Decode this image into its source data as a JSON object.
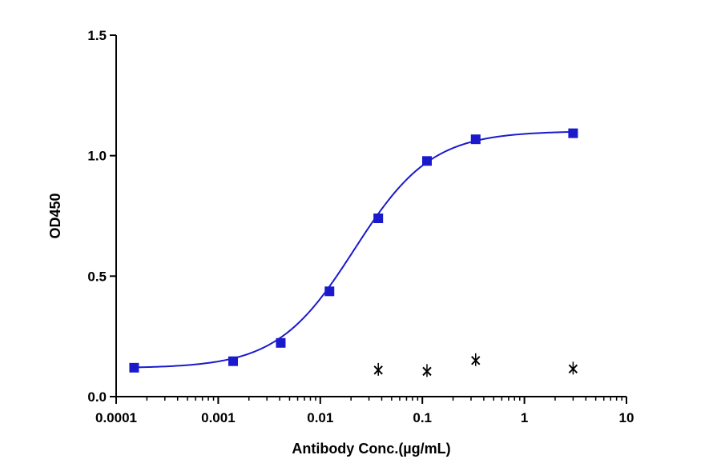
{
  "chart_data": {
    "type": "scatter",
    "title": "",
    "xlabel": "Antibody Conc.(µg/mL)",
    "ylabel": "OD450",
    "xscale": "log",
    "xlim": [
      0.0001,
      10
    ],
    "ylim": [
      0,
      1.5
    ],
    "xticks": [
      0.0001,
      0.001,
      0.01,
      0.1,
      1,
      10
    ],
    "xtick_labels": [
      "0.0001",
      "0.001",
      "0.01",
      "0.1",
      "1",
      "10"
    ],
    "yticks": [
      0,
      0.5,
      1.0,
      1.5
    ],
    "ytick_labels": [
      "0.0",
      "0.5",
      "1.0",
      "1.5"
    ],
    "grid": false,
    "series": [
      {
        "marker": "square",
        "color": "#1a1acc",
        "fit_curve": "4PL",
        "points": [
          {
            "x": 0.00015,
            "y": 0.12
          },
          {
            "x": 0.0014,
            "y": 0.147
          },
          {
            "x": 0.0041,
            "y": 0.223
          },
          {
            "x": 0.0123,
            "y": 0.437
          },
          {
            "x": 0.037,
            "y": 0.74
          },
          {
            "x": 0.111,
            "y": 0.978
          },
          {
            "x": 0.333,
            "y": 1.068
          },
          {
            "x": 3.0,
            "y": 1.093
          }
        ]
      },
      {
        "marker": "x",
        "color": "#000000",
        "points": [
          {
            "x": 0.037,
            "y": 0.11
          },
          {
            "x": 0.111,
            "y": 0.105
          },
          {
            "x": 0.333,
            "y": 0.15
          },
          {
            "x": 3.0,
            "y": 0.115
          }
        ]
      }
    ]
  }
}
